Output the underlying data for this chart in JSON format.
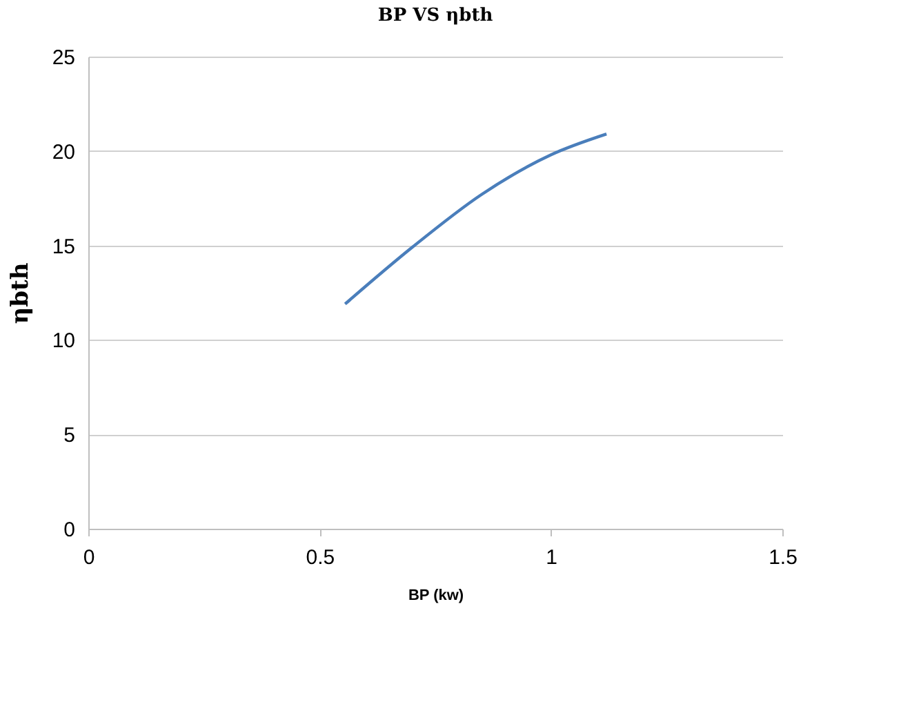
{
  "chart_data": {
    "type": "line",
    "title": "BP VS ηbth",
    "xlabel": "BP (kw)",
    "ylabel": "ηbth",
    "x": [
      0.555,
      0.7,
      0.85,
      1.0,
      1.12
    ],
    "series": [
      {
        "color": "#4a7ebb",
        "values": [
          11.9,
          14.9,
          17.7,
          19.8,
          20.9
        ]
      }
    ],
    "xlim": [
      0,
      1.5
    ],
    "xticks": [
      0,
      0.5,
      1,
      1.5
    ],
    "ylim": [
      0,
      25
    ],
    "yticks": [
      0,
      5,
      10,
      15,
      20,
      25
    ],
    "grid": "y",
    "legend": false,
    "marker": "none",
    "line_style": "solid"
  }
}
